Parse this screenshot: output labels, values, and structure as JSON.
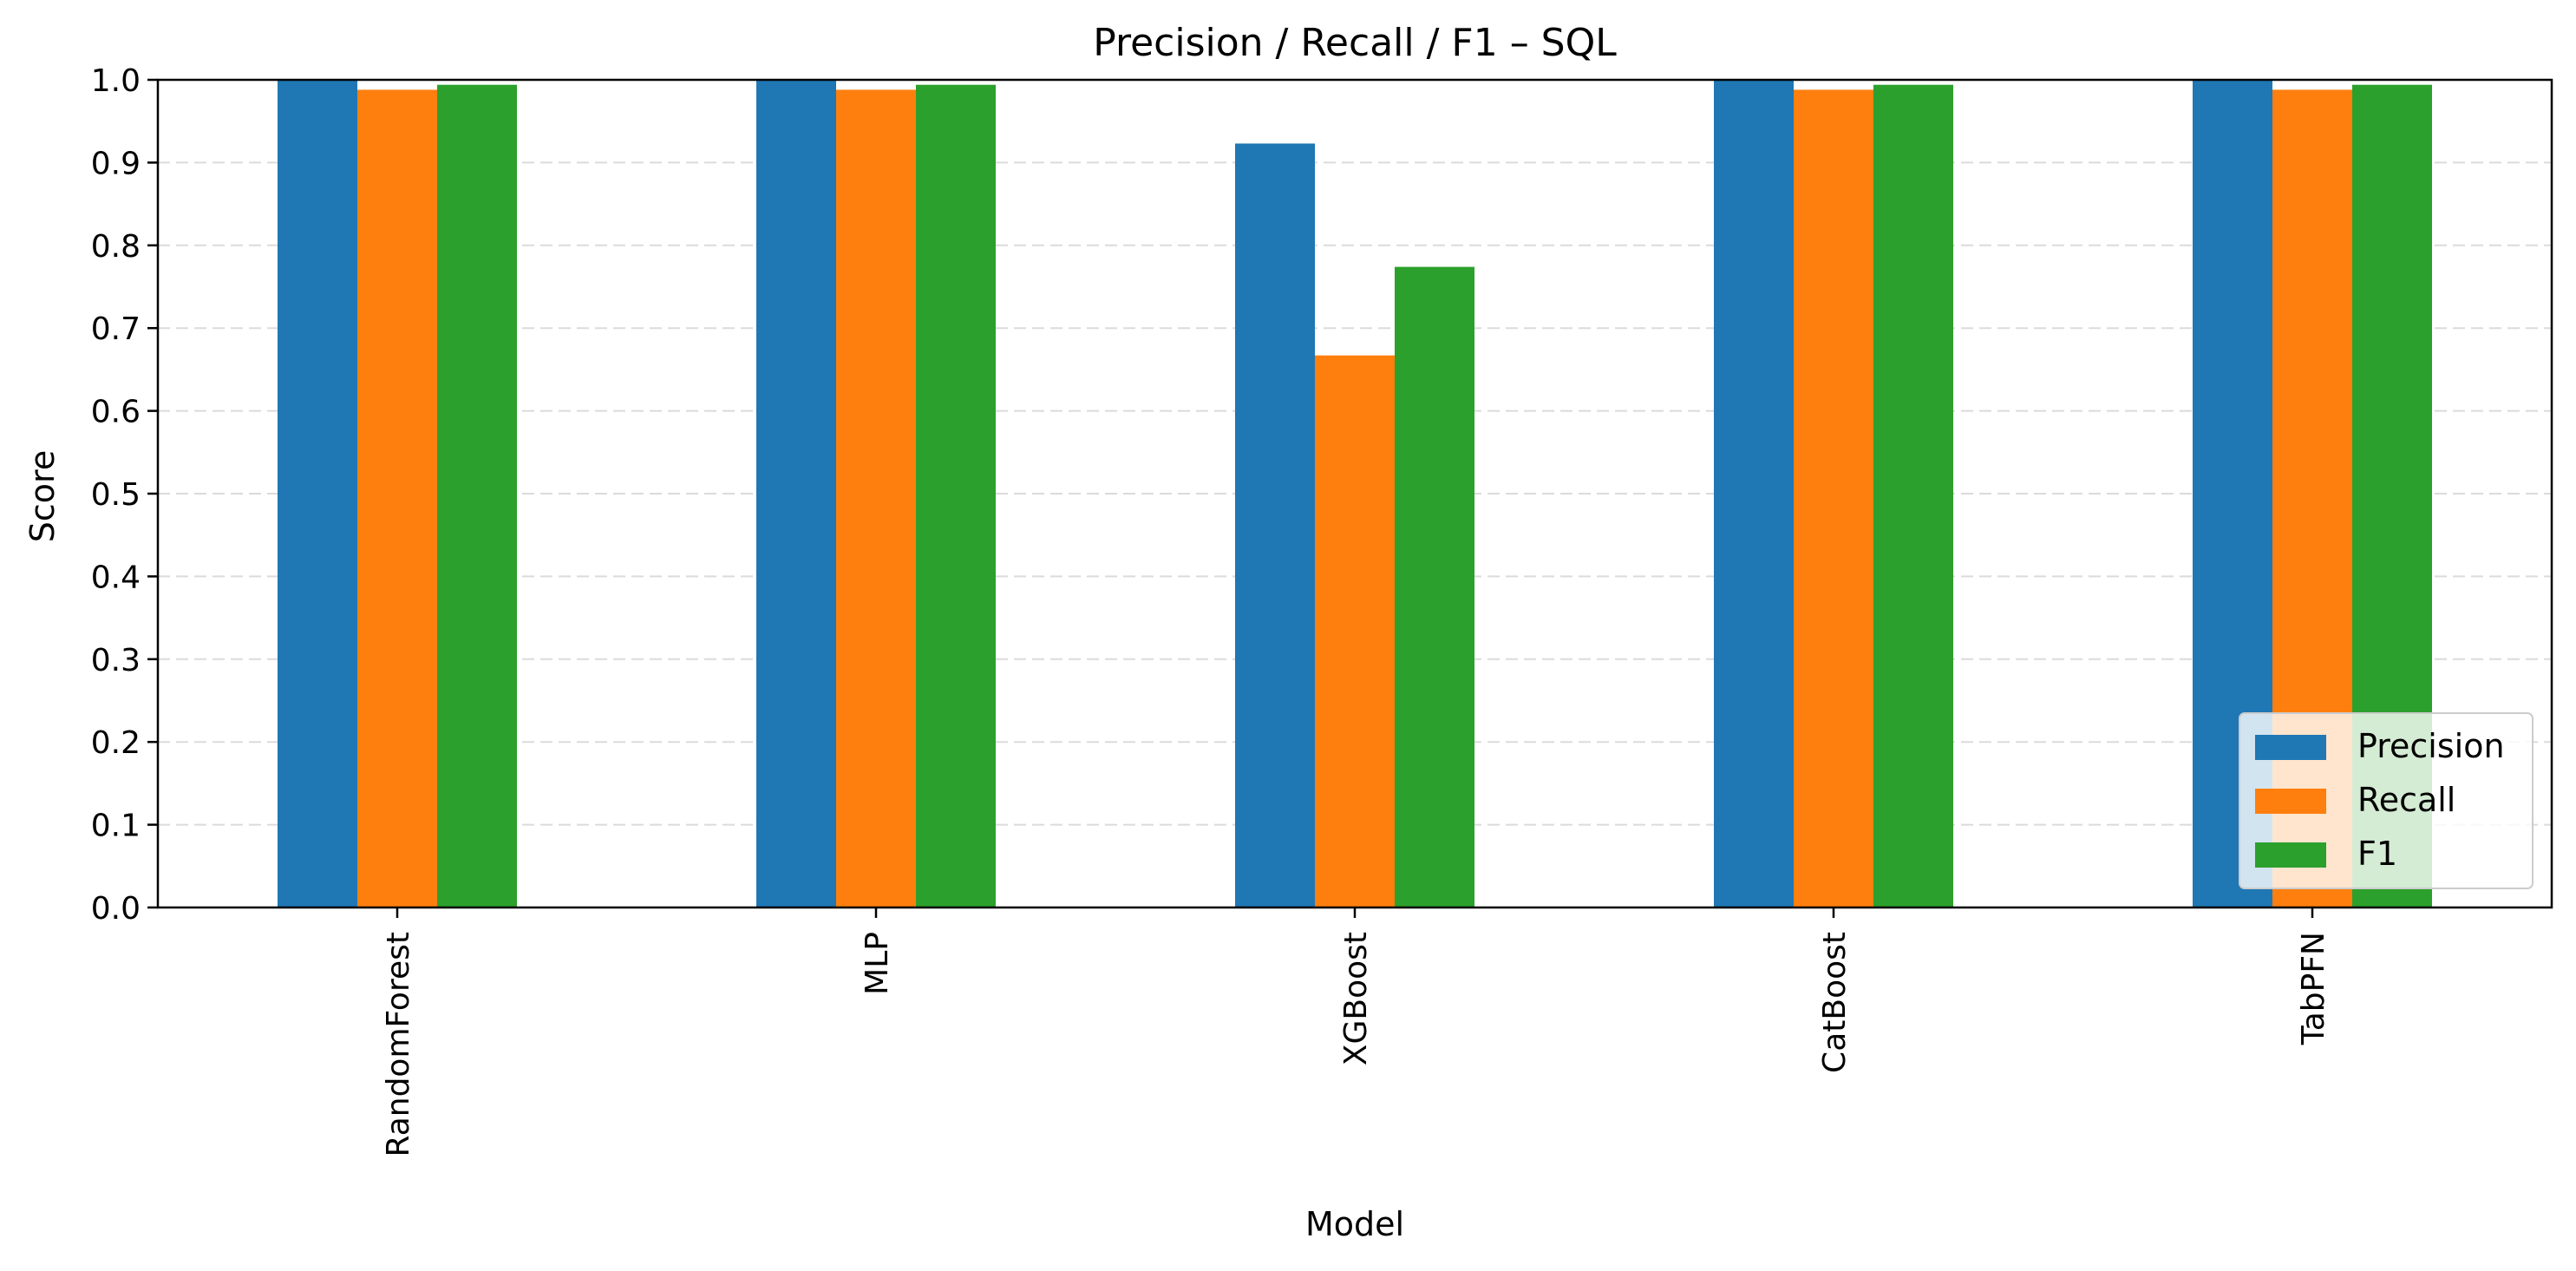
{
  "chart_data": {
    "type": "bar",
    "title": "Precision / Recall / F1 – SQL",
    "xlabel": "Model",
    "ylabel": "Score",
    "ylim": [
      0,
      1.0
    ],
    "yticks": [
      "0.0",
      "0.1",
      "0.2",
      "0.3",
      "0.4",
      "0.5",
      "0.6",
      "0.7",
      "0.8",
      "0.9",
      "1.0"
    ],
    "categories": [
      "RandomForest",
      "MLP",
      "XGBoost",
      "CatBoost",
      "TabPFN"
    ],
    "series": [
      {
        "name": "Precision",
        "color": "#1f77b4",
        "values": [
          1.0,
          1.0,
          0.923,
          1.0,
          1.0
        ]
      },
      {
        "name": "Recall",
        "color": "#ff7f0e",
        "values": [
          0.988,
          0.988,
          0.667,
          0.988,
          0.988
        ]
      },
      {
        "name": "F1",
        "color": "#2ca02c",
        "values": [
          0.994,
          0.994,
          0.774,
          0.994,
          0.994
        ]
      }
    ],
    "grid": "y, dashed",
    "legend_position": "lower right"
  }
}
